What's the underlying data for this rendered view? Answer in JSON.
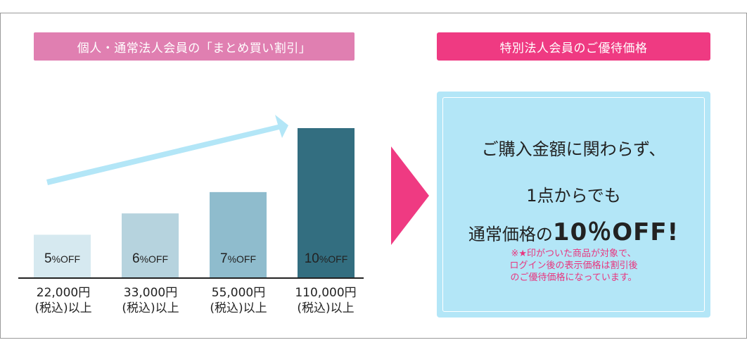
{
  "header_left": "個人・通常法人会員の「まとめ買い割引」",
  "header_right": "特別法人会員のご優待価格",
  "chart_data": {
    "type": "bar",
    "categories": [
      "22,000円\n(税込)以上",
      "33,000円\n(税込)以上",
      "55,000円\n(税込)以上",
      "110,000円\n(税込)以上"
    ],
    "values": [
      5,
      6,
      7,
      10
    ],
    "value_unit": "%OFF",
    "bar_colors": [
      "#d6e9f0",
      "#b6d3de",
      "#8fbccd",
      "#336e80"
    ],
    "ylim": [
      0,
      10
    ],
    "title": "",
    "xlabel": "",
    "ylabel": ""
  },
  "tiers": [
    {
      "amount": "22,000円",
      "tax": "(税込)以上"
    },
    {
      "amount": "33,000円",
      "tax": "(税込)以上"
    },
    {
      "amount": "55,000円",
      "tax": "(税込)以上"
    },
    {
      "amount": "110,000円",
      "tax": "(税込)以上"
    }
  ],
  "special": {
    "line1": "ご購入金額に関わらず、",
    "line2": "1点からでも",
    "line3_prefix": "通常価格の",
    "line3_emph": "10％OFF!",
    "note": [
      "※★印がついた商品が対象で、",
      "ログイン後の表示価格は割引後",
      "のご優待価格になっています。"
    ]
  },
  "colors": {
    "accent_pink": "#ef3a82",
    "header_left_bg": "#e07fb1",
    "special_bg": "#b3e6f7",
    "rise_arrow": "#b3e6f7",
    "note_pink": "#e8367f"
  }
}
